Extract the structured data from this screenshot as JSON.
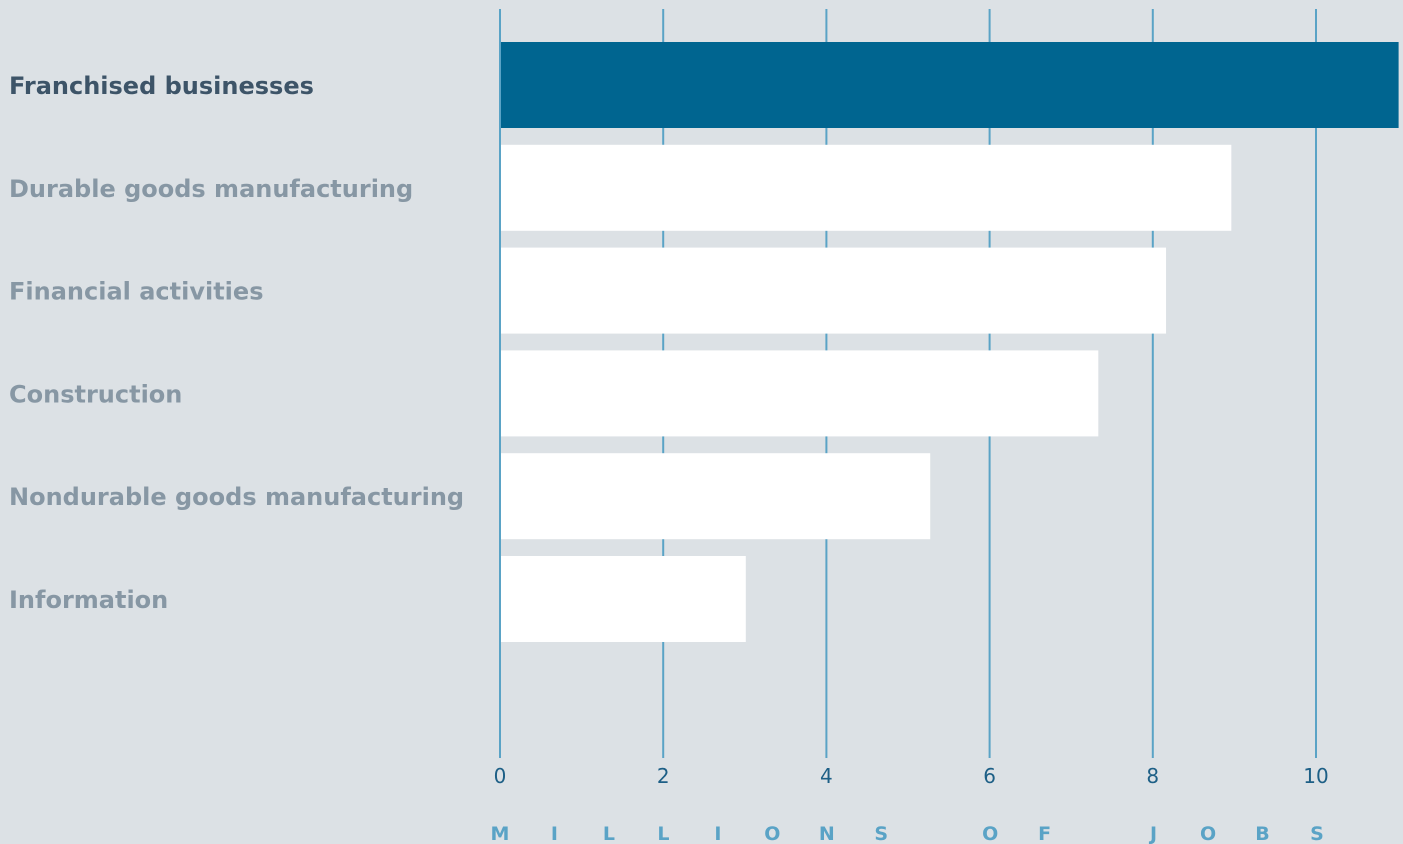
{
  "chart_data": {
    "type": "bar",
    "orientation": "horizontal",
    "categories": [
      "Franchised businesses",
      "Durable goods manufacturing",
      "Financial activities",
      "Construction",
      "Nondurable goods manufacturing",
      "Information"
    ],
    "values": [
      11.0,
      8.95,
      8.15,
      7.32,
      5.26,
      3.0
    ],
    "highlight_index": 0,
    "xlabel": "MILLIONS OF JOBS",
    "xticks": [
      0,
      2,
      4,
      6,
      8,
      10
    ],
    "xlim": [
      0,
      11
    ],
    "grid": "vertical",
    "colors": {
      "background": "#dce1e5",
      "highlight_bar": "#006590",
      "bar": "#ffffff",
      "gridline": "#5aa3c6",
      "highlight_label": "#3d5468",
      "label": "#8797a4",
      "tick_label": "#1d5f86",
      "axis_title": "#5aa3c6"
    }
  }
}
